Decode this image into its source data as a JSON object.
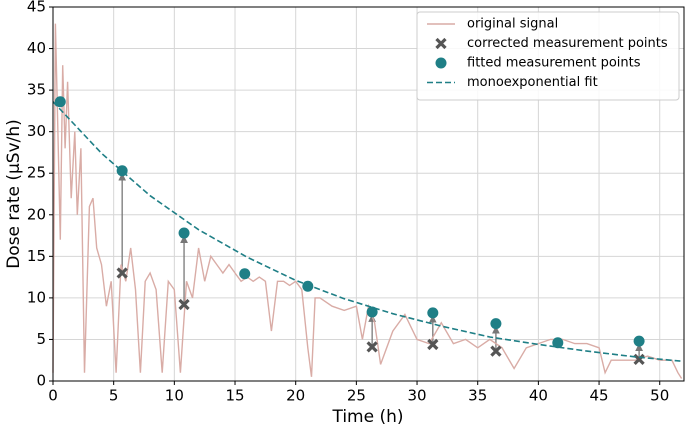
{
  "chart_data": {
    "type": "line",
    "xlabel": "Time (h)",
    "ylabel": "Dose rate (μSv/h)",
    "xlim": [
      0,
      52
    ],
    "ylim": [
      0,
      45
    ],
    "xticks": [
      0,
      5,
      10,
      15,
      20,
      25,
      30,
      35,
      40,
      45,
      50
    ],
    "yticks": [
      0,
      5,
      10,
      15,
      20,
      25,
      30,
      35,
      40,
      45
    ],
    "grid": true,
    "legend": "upper right",
    "series": [
      {
        "name": "original signal",
        "type": "line",
        "color": "#d9aca6",
        "linestyle": "solid",
        "x": [
          0,
          0.2,
          0.4,
          0.6,
          0.8,
          1.0,
          1.2,
          1.5,
          1.8,
          2.0,
          2.3,
          2.6,
          3.0,
          3.3,
          3.6,
          4.0,
          4.4,
          4.8,
          5.2,
          5.6,
          6.0,
          6.4,
          6.8,
          7.2,
          7.6,
          8.0,
          8.5,
          9.0,
          9.5,
          10.0,
          10.5,
          11.0,
          11.5,
          12.0,
          12.5,
          13.0,
          13.5,
          14.0,
          14.5,
          15.0,
          15.5,
          16.0,
          16.5,
          17.0,
          17.5,
          18.0,
          18.5,
          19.0,
          19.5,
          20.0,
          20.5,
          21.0,
          21.3,
          21.6,
          22.0,
          23,
          24,
          25,
          25.5,
          26,
          26.5,
          27,
          28,
          29,
          30,
          31,
          32,
          33,
          34,
          35,
          36,
          37,
          38,
          39,
          40,
          41,
          42,
          43,
          44,
          45,
          45.5,
          46,
          47,
          48,
          49,
          50,
          51,
          51.5,
          51.8
        ],
        "values": [
          1,
          43,
          30,
          17,
          38,
          28,
          36,
          22,
          30,
          20,
          28,
          1,
          21,
          22,
          16,
          14,
          9,
          12,
          1,
          14,
          12,
          16,
          11,
          1,
          12,
          13,
          11,
          1,
          12,
          11,
          1,
          12,
          10,
          16,
          12,
          15,
          14,
          13,
          14,
          13,
          12,
          12.5,
          12,
          12.5,
          12,
          6,
          12,
          12,
          11.5,
          12,
          11,
          4,
          0.5,
          10,
          10,
          9,
          8.5,
          9,
          5,
          9,
          7,
          2,
          6,
          8,
          5,
          4.5,
          7,
          4.5,
          5,
          4,
          5,
          4,
          1.5,
          4,
          4.5,
          5,
          5,
          4.5,
          4.5,
          4,
          1,
          2.5,
          2.5,
          2.5,
          3,
          2.5,
          2.5,
          1,
          0.3
        ]
      },
      {
        "name": "corrected measurement points",
        "type": "scatter",
        "marker": "x",
        "color": "#555555",
        "x": [
          5.7,
          10.8,
          26.3,
          31.3,
          36.5,
          48.3
        ],
        "values": [
          13,
          9.2,
          4.1,
          4.4,
          3.6,
          2.6
        ]
      },
      {
        "name": "fitted measurement points",
        "type": "scatter",
        "marker": "o",
        "color": "#1f7f86",
        "x": [
          0.6,
          5.7,
          10.8,
          15.8,
          21.0,
          26.3,
          31.3,
          36.5,
          41.6,
          48.3
        ],
        "values": [
          33.6,
          25.3,
          17.8,
          12.9,
          11.4,
          8.3,
          8.2,
          6.9,
          4.6,
          4.8
        ]
      },
      {
        "name": "monoexponential fit",
        "type": "line",
        "color": "#1f7f86",
        "linestyle": "dashed",
        "x": [
          0,
          4,
          8,
          12,
          16,
          20,
          24,
          28,
          32,
          36,
          40,
          44,
          48,
          51.7
        ],
        "values": [
          33.6,
          27.4,
          22.3,
          18.2,
          14.9,
          12.1,
          9.9,
          8.1,
          6.6,
          5.3,
          4.4,
          3.6,
          2.9,
          2.4
        ]
      }
    ]
  }
}
